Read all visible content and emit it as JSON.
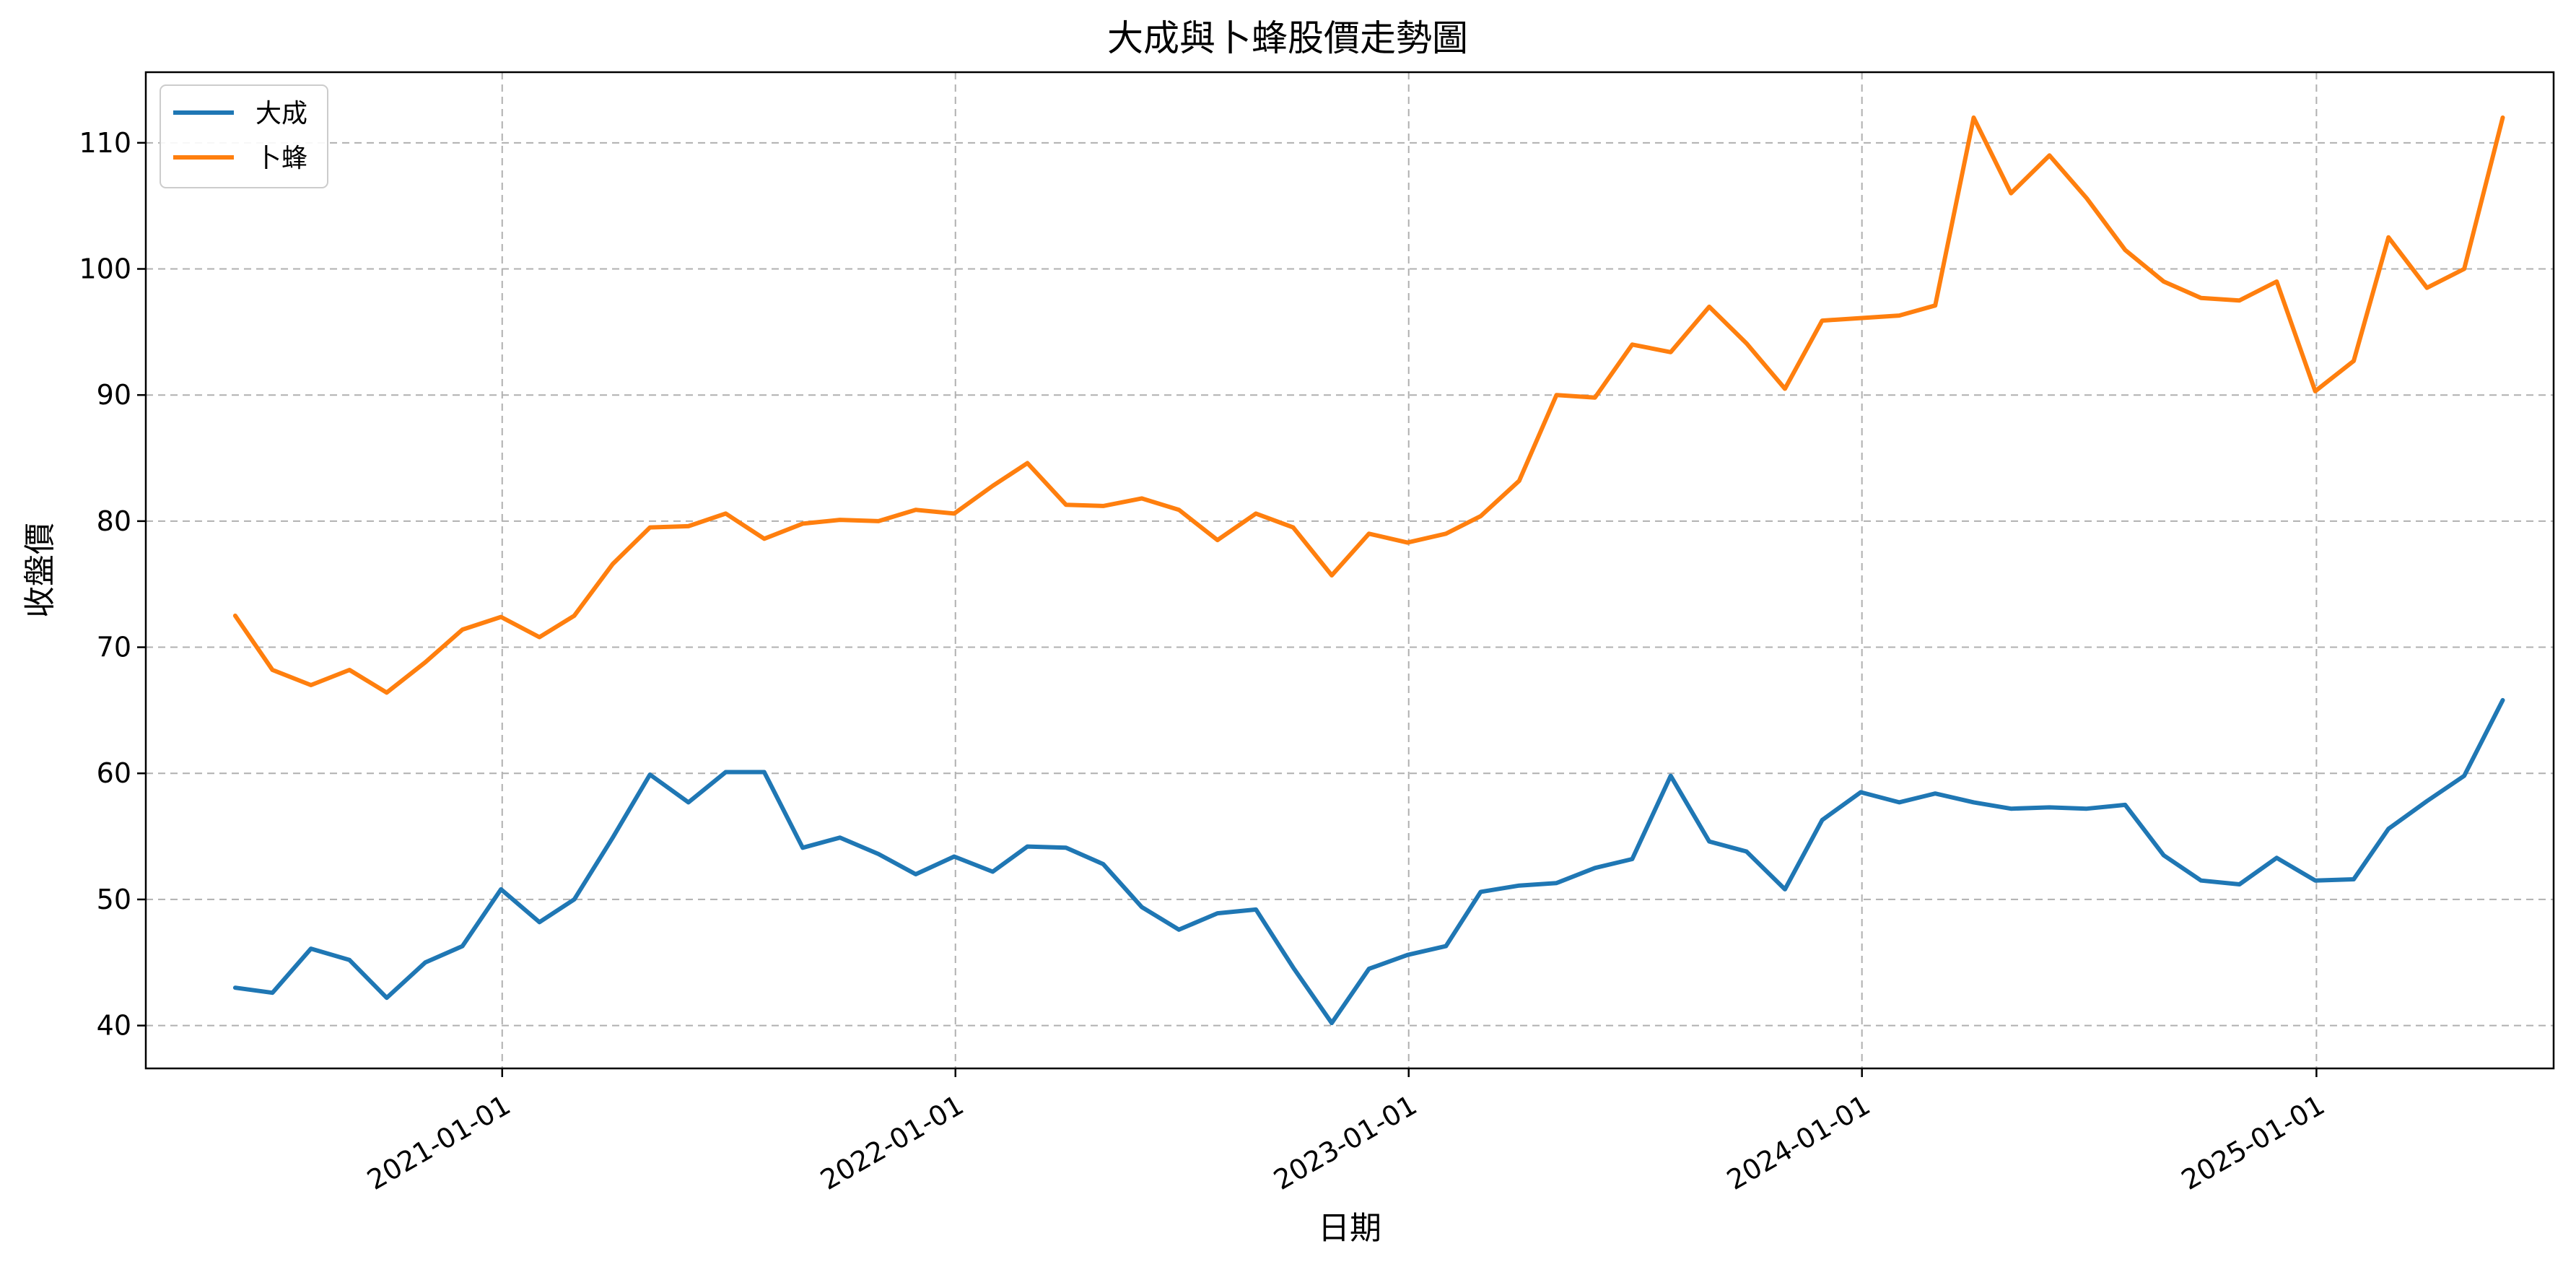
{
  "chart_data": {
    "type": "line",
    "title": "大成與卜蜂股價走勢圖",
    "xlabel": "日期",
    "ylabel": "收盤價",
    "x": [
      "2020-05-31",
      "2020-06-30",
      "2020-07-31",
      "2020-08-31",
      "2020-09-30",
      "2020-10-31",
      "2020-11-30",
      "2020-12-31",
      "2021-01-31",
      "2021-02-28",
      "2021-03-31",
      "2021-04-30",
      "2021-05-31",
      "2021-06-30",
      "2021-07-31",
      "2021-08-31",
      "2021-09-30",
      "2021-10-31",
      "2021-11-30",
      "2021-12-31",
      "2022-01-31",
      "2022-02-28",
      "2022-03-31",
      "2022-04-30",
      "2022-05-31",
      "2022-06-30",
      "2022-07-31",
      "2022-08-31",
      "2022-09-30",
      "2022-10-31",
      "2022-11-30",
      "2022-12-31",
      "2023-01-31",
      "2023-02-28",
      "2023-03-31",
      "2023-04-30",
      "2023-05-31",
      "2023-06-30",
      "2023-07-31",
      "2023-08-31",
      "2023-09-30",
      "2023-10-31",
      "2023-11-30",
      "2023-12-31",
      "2024-01-31",
      "2024-02-29",
      "2024-03-31",
      "2024-04-30",
      "2024-05-31",
      "2024-06-30",
      "2024-07-31",
      "2024-08-31",
      "2024-09-30",
      "2024-10-31",
      "2024-11-30",
      "2024-12-31",
      "2025-01-31",
      "2025-02-28",
      "2025-03-31",
      "2025-04-30",
      "2025-05-31"
    ],
    "series": [
      {
        "name": "大成",
        "color": "#1f77b4",
        "values": [
          43.0,
          42.6,
          46.1,
          45.2,
          42.2,
          45.0,
          46.3,
          50.8,
          48.2,
          50.0,
          54.9,
          59.9,
          57.7,
          60.1,
          60.1,
          54.1,
          54.9,
          53.6,
          52.0,
          53.4,
          52.2,
          54.2,
          54.1,
          52.8,
          49.4,
          47.6,
          48.9,
          49.2,
          44.6,
          40.2,
          44.5,
          45.6,
          46.3,
          50.6,
          51.1,
          51.3,
          52.5,
          53.2,
          59.8,
          54.6,
          53.8,
          50.8,
          56.3,
          58.5,
          57.7,
          58.4,
          57.7,
          57.2,
          57.3,
          57.2,
          57.5,
          53.5,
          51.5,
          51.2,
          53.3,
          51.5,
          51.6,
          55.6,
          57.8,
          59.8,
          65.8
        ]
      },
      {
        "name": "卜蜂",
        "color": "#ff7f0e",
        "values": [
          72.5,
          68.2,
          67.0,
          68.2,
          66.4,
          68.8,
          71.4,
          72.4,
          70.8,
          72.5,
          76.6,
          79.5,
          79.6,
          80.6,
          78.6,
          79.8,
          80.1,
          80.0,
          80.9,
          80.6,
          82.8,
          84.6,
          81.3,
          81.2,
          81.8,
          80.9,
          78.5,
          80.6,
          79.5,
          75.7,
          79.0,
          78.3,
          79.0,
          80.4,
          83.2,
          90.0,
          89.8,
          94.0,
          93.4,
          97.0,
          94.1,
          90.5,
          95.9,
          96.1,
          96.3,
          97.1,
          112.0,
          106.0,
          109.0,
          105.6,
          101.5,
          99.0,
          97.7,
          97.5,
          99.0,
          90.3,
          92.7,
          102.5,
          98.5,
          100.0,
          112.0
        ]
      }
    ],
    "xticks": [
      "2021-01-01",
      "2022-01-01",
      "2023-01-01",
      "2024-01-01",
      "2025-01-01"
    ],
    "yticks": [
      40,
      50,
      60,
      70,
      80,
      90,
      100,
      110
    ],
    "xlim": [
      "2020-03-20",
      "2025-07-11"
    ],
    "ylim": [
      36.6,
      115.6
    ],
    "grid": true,
    "legend_position": "upper-left"
  }
}
